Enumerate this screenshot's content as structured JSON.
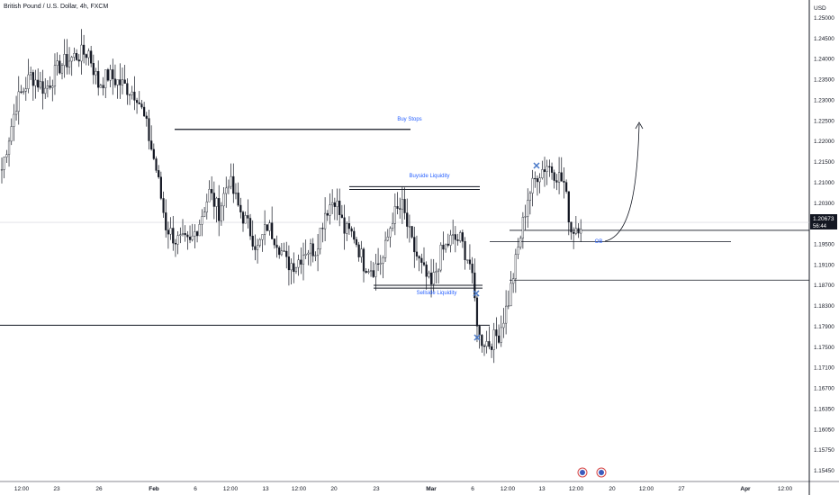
{
  "header": {
    "title": "British Pound / U.S. Dollar, 4h, FXCM"
  },
  "price_axis": {
    "currency": "USD",
    "ticks": [
      "1.25000",
      "1.24500",
      "1.24000",
      "1.23500",
      "1.23000",
      "1.22500",
      "1.22000",
      "1.21500",
      "1.21000",
      "1.20300",
      "1.19900",
      "1.19500",
      "1.19100",
      "1.18700",
      "1.18300",
      "1.17900",
      "1.17500",
      "1.17100",
      "1.16700",
      "1.16350",
      "1.16050",
      "1.15750",
      "1.15450"
    ],
    "current_price": "1.20673",
    "countdown": "56:44"
  },
  "time_axis": {
    "ticks": [
      "12:00",
      "23",
      "26",
      "Feb",
      "6",
      "12:00",
      "13",
      "12:00",
      "20",
      "23",
      "Mar",
      "6",
      "12:00",
      "13",
      "12:00",
      "20",
      "12:00",
      "27",
      "Apr",
      "12:00"
    ],
    "bold_ticks": [
      "Feb",
      "Mar",
      "Apr"
    ]
  },
  "annotations": {
    "buy_stops": "Buy Stops",
    "buyside_liquidity": "Buyside Liquidity",
    "sellside_liquidity": "Sellside Liquidity",
    "ob": "OB",
    "x_marker": "✕"
  },
  "colors": {
    "up": "#131722",
    "down": "#131722",
    "annotation_blue": "#2962ff",
    "marker_blue": "#4a79c8",
    "price_box": "#131722",
    "grid_line": "#d1d4dc"
  },
  "chart_data": {
    "type": "candlestick",
    "symbol": "GBPUSD",
    "timeframe": "4h",
    "ylim": [
      1.1525,
      1.2525
    ],
    "path_anchors": [
      [
        0,
        1.218
      ],
      [
        6,
        1.232
      ],
      [
        12,
        1.238
      ],
      [
        18,
        1.235
      ],
      [
        24,
        1.24
      ],
      [
        30,
        1.242
      ],
      [
        36,
        1.243
      ],
      [
        40,
        1.236
      ],
      [
        44,
        1.238
      ],
      [
        50,
        1.236
      ],
      [
        56,
        1.234
      ],
      [
        60,
        1.227
      ],
      [
        64,
        1.218
      ],
      [
        68,
        1.206
      ],
      [
        72,
        1.203
      ],
      [
        78,
        1.202
      ],
      [
        82,
        1.207
      ],
      [
        86,
        1.213
      ],
      [
        90,
        1.209
      ],
      [
        94,
        1.216
      ],
      [
        98,
        1.21
      ],
      [
        102,
        1.206
      ],
      [
        106,
        1.201
      ],
      [
        110,
        1.206
      ],
      [
        114,
        1.203
      ],
      [
        118,
        1.198
      ],
      [
        122,
        1.198
      ],
      [
        126,
        1.201
      ],
      [
        130,
        1.201
      ],
      [
        134,
        1.209
      ],
      [
        138,
        1.212
      ],
      [
        142,
        1.205
      ],
      [
        146,
        1.204
      ],
      [
        150,
        1.198
      ],
      [
        154,
        1.197
      ],
      [
        158,
        1.199
      ],
      [
        162,
        1.208
      ],
      [
        166,
        1.21
      ],
      [
        170,
        1.202
      ],
      [
        174,
        1.197
      ],
      [
        178,
        1.193
      ],
      [
        182,
        1.2
      ],
      [
        186,
        1.203
      ],
      [
        190,
        1.203
      ],
      [
        194,
        1.198
      ],
      [
        198,
        1.182
      ],
      [
        202,
        1.181
      ],
      [
        206,
        1.183
      ],
      [
        210,
        1.19
      ],
      [
        214,
        1.201
      ],
      [
        218,
        1.212
      ],
      [
        222,
        1.217
      ],
      [
        226,
        1.219
      ],
      [
        230,
        1.217
      ],
      [
        233,
        1.215
      ],
      [
        236,
        1.205
      ],
      [
        240,
        1.2067
      ]
    ],
    "levels": {
      "buy_stops": 1.2265,
      "buyside_liquidity": 1.214,
      "sellside_liquidity": 1.193,
      "low_liquidity": 1.1848,
      "ob_top": 1.205,
      "ob_bottom": 1.2026,
      "lower_ob_line": 1.1944
    }
  }
}
